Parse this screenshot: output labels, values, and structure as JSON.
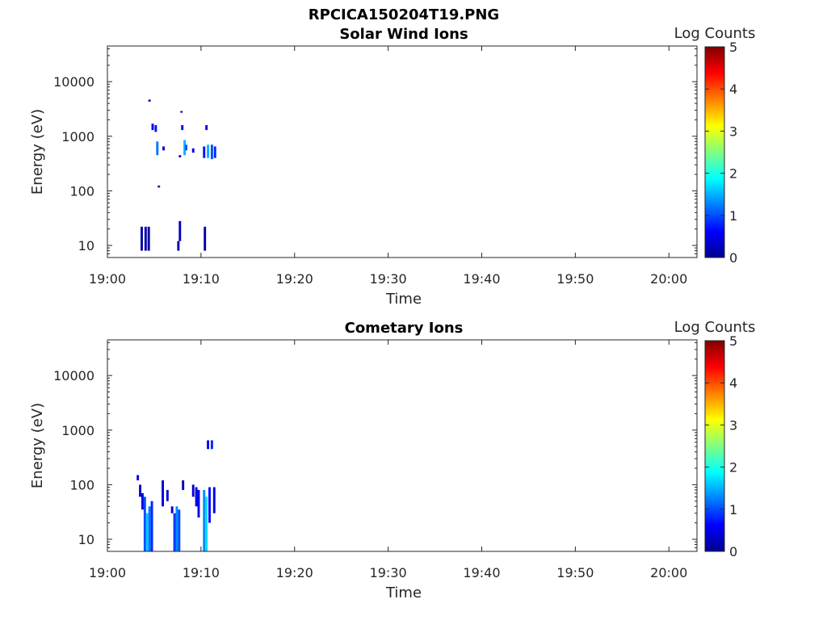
{
  "figure_title": "RPCICA150204T19.PNG",
  "colors": {
    "axis": "#262626",
    "colormap": [
      "#00008f",
      "#0000ff",
      "#0080ff",
      "#00ffff",
      "#80ff80",
      "#ffff00",
      "#ff8000",
      "#ff0000",
      "#800000"
    ]
  },
  "chart_data": [
    {
      "type": "heatmap",
      "title": "Solar Wind Ions",
      "xlabel": "Time",
      "ylabel": "Energy (eV)",
      "x_scale": "time",
      "y_scale": "log",
      "xlim": [
        "19:00",
        "20:03"
      ],
      "ylim": [
        6,
        45000
      ],
      "x_ticks": [
        "19:00",
        "19:10",
        "19:20",
        "19:30",
        "19:40",
        "19:50",
        "20:00"
      ],
      "y_ticks": [
        "10",
        "100",
        "1000",
        "10000"
      ],
      "colorbar": {
        "label": "Log Counts",
        "range": [
          0,
          5
        ],
        "ticks": [
          "0",
          "1",
          "2",
          "3",
          "4",
          "5"
        ]
      },
      "cells": [
        {
          "t": "19:03:40",
          "e_lo": 8,
          "e_hi": 22,
          "v": 0.1
        },
        {
          "t": "19:04:05",
          "e_lo": 8,
          "e_hi": 22,
          "v": 0.2
        },
        {
          "t": "19:04:25",
          "e_lo": 8,
          "e_hi": 22,
          "v": 0.1
        },
        {
          "t": "19:04:30",
          "e_lo": 4300,
          "e_hi": 4700,
          "v": 0.3
        },
        {
          "t": "19:04:50",
          "e_lo": 1300,
          "e_hi": 1700,
          "v": 0.5
        },
        {
          "t": "19:05:10",
          "e_lo": 1200,
          "e_hi": 1600,
          "v": 0.7
        },
        {
          "t": "19:05:20",
          "e_lo": 450,
          "e_hi": 800,
          "v": 1.2
        },
        {
          "t": "19:05:30",
          "e_lo": 115,
          "e_hi": 125,
          "v": 0.2
        },
        {
          "t": "19:06:00",
          "e_lo": 550,
          "e_hi": 650,
          "v": 0.4
        },
        {
          "t": "19:07:35",
          "e_lo": 8,
          "e_hi": 12,
          "v": 0.1
        },
        {
          "t": "19:07:45",
          "e_lo": 12,
          "e_hi": 28,
          "v": 0.3
        },
        {
          "t": "19:07:45",
          "e_lo": 410,
          "e_hi": 450,
          "v": 0.3
        },
        {
          "t": "19:07:55",
          "e_lo": 2700,
          "e_hi": 2900,
          "v": 0.3
        },
        {
          "t": "19:08:00",
          "e_lo": 1300,
          "e_hi": 1600,
          "v": 0.6
        },
        {
          "t": "19:08:15",
          "e_lo": 450,
          "e_hi": 850,
          "v": 1.5
        },
        {
          "t": "19:08:25",
          "e_lo": 550,
          "e_hi": 700,
          "v": 1.0
        },
        {
          "t": "19:09:10",
          "e_lo": 500,
          "e_hi": 600,
          "v": 0.5
        },
        {
          "t": "19:10:25",
          "e_lo": 8,
          "e_hi": 22,
          "v": 0.2
        },
        {
          "t": "19:10:20",
          "e_lo": 400,
          "e_hi": 650,
          "v": 0.7
        },
        {
          "t": "19:10:35",
          "e_lo": 1300,
          "e_hi": 1600,
          "v": 0.6
        },
        {
          "t": "19:10:45",
          "e_lo": 400,
          "e_hi": 700,
          "v": 1.5
        },
        {
          "t": "19:11:10",
          "e_lo": 380,
          "e_hi": 700,
          "v": 1.0
        },
        {
          "t": "19:11:30",
          "e_lo": 400,
          "e_hi": 650,
          "v": 0.8
        }
      ]
    },
    {
      "type": "heatmap",
      "title": "Cometary Ions",
      "xlabel": "Time",
      "ylabel": "Energy (eV)",
      "x_scale": "time",
      "y_scale": "log",
      "xlim": [
        "19:00",
        "20:03"
      ],
      "ylim": [
        6,
        45000
      ],
      "x_ticks": [
        "19:00",
        "19:10",
        "19:20",
        "19:30",
        "19:40",
        "19:50",
        "20:00"
      ],
      "y_ticks": [
        "10",
        "100",
        "1000",
        "10000"
      ],
      "colorbar": {
        "label": "Log Counts",
        "range": [
          0,
          5
        ],
        "ticks": [
          "0",
          "1",
          "2",
          "3",
          "4",
          "5"
        ]
      },
      "cells": [
        {
          "t": "19:03:15",
          "e_lo": 120,
          "e_hi": 150,
          "v": 0.5
        },
        {
          "t": "19:03:30",
          "e_lo": 60,
          "e_hi": 100,
          "v": 0.3
        },
        {
          "t": "19:03:45",
          "e_lo": 35,
          "e_hi": 70,
          "v": 0.5
        },
        {
          "t": "19:04:00",
          "e_lo": 6,
          "e_hi": 60,
          "v": 1.0
        },
        {
          "t": "19:04:15",
          "e_lo": 6,
          "e_hi": 30,
          "v": 1.6
        },
        {
          "t": "19:04:30",
          "e_lo": 6,
          "e_hi": 40,
          "v": 1.2
        },
        {
          "t": "19:04:45",
          "e_lo": 6,
          "e_hi": 50,
          "v": 0.8
        },
        {
          "t": "19:05:55",
          "e_lo": 40,
          "e_hi": 120,
          "v": 0.4
        },
        {
          "t": "19:06:25",
          "e_lo": 50,
          "e_hi": 80,
          "v": 0.4
        },
        {
          "t": "19:06:55",
          "e_lo": 30,
          "e_hi": 40,
          "v": 0.3
        },
        {
          "t": "19:07:10",
          "e_lo": 6,
          "e_hi": 30,
          "v": 0.9
        },
        {
          "t": "19:07:25",
          "e_lo": 6,
          "e_hi": 40,
          "v": 1.3
        },
        {
          "t": "19:07:40",
          "e_lo": 6,
          "e_hi": 35,
          "v": 1.0
        },
        {
          "t": "19:08:05",
          "e_lo": 80,
          "e_hi": 120,
          "v": 0.2
        },
        {
          "t": "19:09:10",
          "e_lo": 60,
          "e_hi": 100,
          "v": 0.4
        },
        {
          "t": "19:09:30",
          "e_lo": 40,
          "e_hi": 90,
          "v": 0.5
        },
        {
          "t": "19:09:45",
          "e_lo": 25,
          "e_hi": 80,
          "v": 0.5
        },
        {
          "t": "19:10:20",
          "e_lo": 6,
          "e_hi": 80,
          "v": 1.3
        },
        {
          "t": "19:10:35",
          "e_lo": 6,
          "e_hi": 60,
          "v": 1.7
        },
        {
          "t": "19:10:45",
          "e_lo": 450,
          "e_hi": 650,
          "v": 0.6
        },
        {
          "t": "19:10:55",
          "e_lo": 20,
          "e_hi": 90,
          "v": 0.7
        },
        {
          "t": "19:11:10",
          "e_lo": 450,
          "e_hi": 650,
          "v": 0.8
        },
        {
          "t": "19:11:25",
          "e_lo": 30,
          "e_hi": 90,
          "v": 0.5
        }
      ]
    }
  ]
}
